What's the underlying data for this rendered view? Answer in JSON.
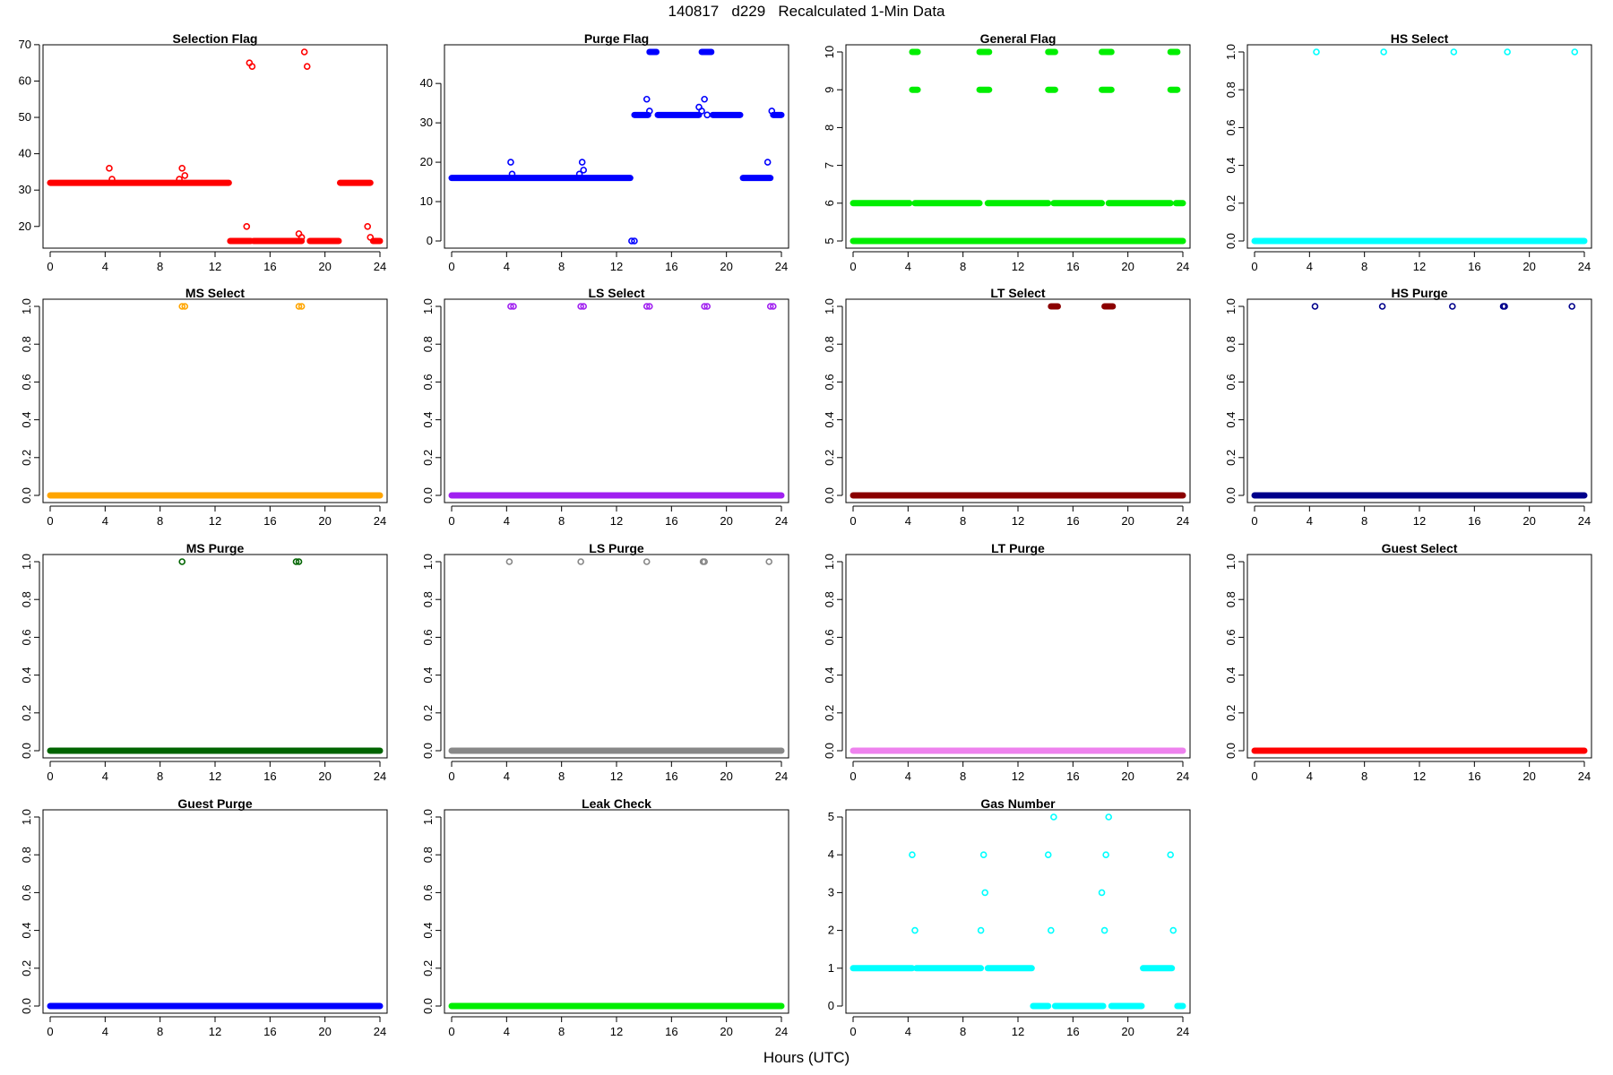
{
  "figure": {
    "title": "140817   d229   Recalculated 1-Min Data",
    "xlabel": "Hours (UTC)"
  },
  "chart_data": [
    {
      "type": "scatter",
      "title": "Selection Flag",
      "color": "#ff0000",
      "xlim": [
        0,
        24
      ],
      "xticks": [
        0,
        4,
        8,
        12,
        16,
        20,
        24
      ],
      "ylim": [
        16,
        68
      ],
      "yticks": [
        20,
        30,
        40,
        50,
        60,
        70
      ],
      "ytick_rotation": 0,
      "runs": [
        [
          0,
          13,
          32
        ],
        [
          13.1,
          14.6,
          16
        ],
        [
          14.8,
          18.3,
          16
        ],
        [
          18.9,
          21,
          16
        ],
        [
          21.1,
          23.3,
          32
        ],
        [
          23.5,
          24,
          16
        ]
      ],
      "points": [
        [
          4.3,
          36
        ],
        [
          4.5,
          33
        ],
        [
          9.4,
          33
        ],
        [
          9.6,
          36
        ],
        [
          9.8,
          34
        ],
        [
          14.3,
          20
        ],
        [
          14.5,
          65
        ],
        [
          14.7,
          64
        ],
        [
          18.1,
          18
        ],
        [
          18.3,
          17
        ],
        [
          18.5,
          68
        ],
        [
          18.7,
          64
        ],
        [
          23.1,
          20
        ],
        [
          23.3,
          17
        ]
      ]
    },
    {
      "type": "scatter",
      "title": "Purge Flag",
      "color": "#0000ff",
      "xlim": [
        0,
        24
      ],
      "xticks": [
        0,
        4,
        8,
        12,
        16,
        20,
        24
      ],
      "ylim": [
        0,
        48
      ],
      "yticks": [
        0,
        10,
        20,
        30,
        40
      ],
      "ytick_rotation": 0,
      "runs": [
        [
          0,
          13,
          16
        ],
        [
          13.3,
          14.3,
          32
        ],
        [
          14.4,
          14.9,
          48
        ],
        [
          15,
          18,
          32
        ],
        [
          18.2,
          18.9,
          48
        ],
        [
          19,
          21,
          32
        ],
        [
          21.2,
          23.2,
          16
        ],
        [
          23.4,
          24,
          32
        ]
      ],
      "points": [
        [
          4.3,
          20
        ],
        [
          4.4,
          17
        ],
        [
          9.3,
          17
        ],
        [
          9.5,
          20
        ],
        [
          9.6,
          18
        ],
        [
          13.1,
          0
        ],
        [
          13.3,
          0
        ],
        [
          14.2,
          36
        ],
        [
          14.4,
          33
        ],
        [
          18,
          34
        ],
        [
          18.2,
          33
        ],
        [
          18.4,
          36
        ],
        [
          18.6,
          32
        ],
        [
          23,
          20
        ],
        [
          23.3,
          33
        ]
      ]
    },
    {
      "type": "scatter",
      "title": "General Flag",
      "color": "#00ee00",
      "xlim": [
        0,
        24
      ],
      "xticks": [
        0,
        4,
        8,
        12,
        16,
        20,
        24
      ],
      "ylim": [
        5,
        10
      ],
      "yticks": [
        5,
        6,
        7,
        8,
        9,
        10
      ],
      "ytick_rotation": 90,
      "runs": [
        [
          0,
          24,
          5
        ],
        [
          0,
          4.1,
          6
        ],
        [
          4.5,
          9.2,
          6
        ],
        [
          9.8,
          14.2,
          6
        ],
        [
          14.6,
          18.1,
          6
        ],
        [
          18.6,
          23.1,
          6
        ],
        [
          23.5,
          24,
          6
        ],
        [
          4.3,
          4.7,
          9
        ],
        [
          4.3,
          4.7,
          10
        ],
        [
          9.2,
          9.9,
          9
        ],
        [
          9.2,
          9.9,
          10
        ],
        [
          14.2,
          14.7,
          9
        ],
        [
          14.2,
          14.7,
          10
        ],
        [
          18.1,
          18.8,
          9
        ],
        [
          18.1,
          18.8,
          10
        ],
        [
          23.1,
          23.6,
          9
        ],
        [
          23.1,
          23.6,
          10
        ]
      ],
      "points": []
    },
    {
      "type": "scatter",
      "title": "HS Select",
      "color": "#00ffff",
      "xlim": [
        0,
        24
      ],
      "xticks": [
        0,
        4,
        8,
        12,
        16,
        20,
        24
      ],
      "ylim": [
        0,
        1
      ],
      "yticks": [
        0.0,
        0.2,
        0.4,
        0.6,
        0.8,
        1.0
      ],
      "ytick_rotation": 90,
      "runs": [
        [
          0,
          24,
          0
        ]
      ],
      "points": [
        [
          4.5,
          1
        ],
        [
          9.4,
          1
        ],
        [
          14.5,
          1
        ],
        [
          18.4,
          1
        ],
        [
          23.3,
          1
        ]
      ]
    },
    {
      "type": "scatter",
      "title": "MS Select",
      "color": "#ffa500",
      "xlim": [
        0,
        24
      ],
      "xticks": [
        0,
        4,
        8,
        12,
        16,
        20,
        24
      ],
      "ylim": [
        0,
        1
      ],
      "yticks": [
        0.0,
        0.2,
        0.4,
        0.6,
        0.8,
        1.0
      ],
      "ytick_rotation": 90,
      "runs": [
        [
          0,
          24,
          0
        ]
      ],
      "points": [
        [
          9.6,
          1
        ],
        [
          9.8,
          1
        ],
        [
          18.1,
          1
        ],
        [
          18.3,
          1
        ]
      ]
    },
    {
      "type": "scatter",
      "title": "LS Select",
      "color": "#a020f0",
      "xlim": [
        0,
        24
      ],
      "xticks": [
        0,
        4,
        8,
        12,
        16,
        20,
        24
      ],
      "ylim": [
        0,
        1
      ],
      "yticks": [
        0.0,
        0.2,
        0.4,
        0.6,
        0.8,
        1.0
      ],
      "ytick_rotation": 90,
      "runs": [
        [
          0,
          24,
          0
        ]
      ],
      "points": [
        [
          4.3,
          1
        ],
        [
          4.5,
          1
        ],
        [
          9.4,
          1
        ],
        [
          9.6,
          1
        ],
        [
          14.2,
          1
        ],
        [
          14.4,
          1
        ],
        [
          18.4,
          1
        ],
        [
          18.6,
          1
        ],
        [
          23.2,
          1
        ],
        [
          23.4,
          1
        ]
      ]
    },
    {
      "type": "scatter",
      "title": "LT Select",
      "color": "#8b0000",
      "xlim": [
        0,
        24
      ],
      "xticks": [
        0,
        4,
        8,
        12,
        16,
        20,
        24
      ],
      "ylim": [
        0,
        1
      ],
      "yticks": [
        0.0,
        0.2,
        0.4,
        0.6,
        0.8,
        1.0
      ],
      "ytick_rotation": 90,
      "runs": [
        [
          0,
          24,
          0
        ],
        [
          14.4,
          14.9,
          1
        ],
        [
          18.3,
          18.9,
          1
        ]
      ],
      "points": []
    },
    {
      "type": "scatter",
      "title": "HS Purge",
      "color": "#00008b",
      "xlim": [
        0,
        24
      ],
      "xticks": [
        0,
        4,
        8,
        12,
        16,
        20,
        24
      ],
      "ylim": [
        0,
        1
      ],
      "yticks": [
        0.0,
        0.2,
        0.4,
        0.6,
        0.8,
        1.0
      ],
      "ytick_rotation": 90,
      "runs": [
        [
          0,
          24,
          0
        ]
      ],
      "points": [
        [
          4.4,
          1
        ],
        [
          9.3,
          1
        ],
        [
          14.4,
          1
        ],
        [
          18.1,
          1
        ],
        [
          18.2,
          1
        ],
        [
          23.1,
          1
        ]
      ]
    },
    {
      "type": "scatter",
      "title": "MS Purge",
      "color": "#006400",
      "xlim": [
        0,
        24
      ],
      "xticks": [
        0,
        4,
        8,
        12,
        16,
        20,
        24
      ],
      "ylim": [
        0,
        1
      ],
      "yticks": [
        0.0,
        0.2,
        0.4,
        0.6,
        0.8,
        1.0
      ],
      "ytick_rotation": 90,
      "runs": [
        [
          0,
          24,
          0
        ]
      ],
      "points": [
        [
          9.6,
          1
        ],
        [
          17.9,
          1
        ],
        [
          18.1,
          1
        ]
      ]
    },
    {
      "type": "scatter",
      "title": "LS Purge",
      "color": "#888888",
      "xlim": [
        0,
        24
      ],
      "xticks": [
        0,
        4,
        8,
        12,
        16,
        20,
        24
      ],
      "ylim": [
        0,
        1
      ],
      "yticks": [
        0.0,
        0.2,
        0.4,
        0.6,
        0.8,
        1.0
      ],
      "ytick_rotation": 90,
      "runs": [
        [
          0,
          24,
          0
        ]
      ],
      "points": [
        [
          4.2,
          1
        ],
        [
          9.4,
          1
        ],
        [
          14.2,
          1
        ],
        [
          18.3,
          1
        ],
        [
          18.4,
          1
        ],
        [
          23.1,
          1
        ]
      ]
    },
    {
      "type": "scatter",
      "title": "LT Purge",
      "color": "#ee82ee",
      "xlim": [
        0,
        24
      ],
      "xticks": [
        0,
        4,
        8,
        12,
        16,
        20,
        24
      ],
      "ylim": [
        0,
        1
      ],
      "yticks": [
        0.0,
        0.2,
        0.4,
        0.6,
        0.8,
        1.0
      ],
      "ytick_rotation": 90,
      "runs": [
        [
          0,
          24,
          0
        ]
      ],
      "points": []
    },
    {
      "type": "scatter",
      "title": "Guest Select",
      "color": "#ff0000",
      "xlim": [
        0,
        24
      ],
      "xticks": [
        0,
        4,
        8,
        12,
        16,
        20,
        24
      ],
      "ylim": [
        0,
        1
      ],
      "yticks": [
        0.0,
        0.2,
        0.4,
        0.6,
        0.8,
        1.0
      ],
      "ytick_rotation": 90,
      "runs": [
        [
          0,
          24,
          0
        ]
      ],
      "points": []
    },
    {
      "type": "scatter",
      "title": "Guest Purge",
      "color": "#0000ff",
      "xlim": [
        0,
        24
      ],
      "xticks": [
        0,
        4,
        8,
        12,
        16,
        20,
        24
      ],
      "ylim": [
        0,
        1
      ],
      "yticks": [
        0.0,
        0.2,
        0.4,
        0.6,
        0.8,
        1.0
      ],
      "ytick_rotation": 90,
      "runs": [
        [
          0,
          24,
          0
        ]
      ],
      "points": []
    },
    {
      "type": "scatter",
      "title": "Leak Check",
      "color": "#00ee00",
      "xlim": [
        0,
        24
      ],
      "xticks": [
        0,
        4,
        8,
        12,
        16,
        20,
        24
      ],
      "ylim": [
        0,
        1
      ],
      "yticks": [
        0.0,
        0.2,
        0.4,
        0.6,
        0.8,
        1.0
      ],
      "ytick_rotation": 90,
      "runs": [
        [
          0,
          24,
          0
        ]
      ],
      "points": []
    },
    {
      "type": "scatter",
      "title": "Gas Number",
      "color": "#00ffff",
      "xlim": [
        0,
        24
      ],
      "xticks": [
        0,
        4,
        8,
        12,
        16,
        20,
        24
      ],
      "ylim": [
        0,
        5
      ],
      "yticks": [
        0,
        1,
        2,
        3,
        4,
        5
      ],
      "ytick_rotation": 0,
      "runs": [
        [
          0,
          4.3,
          1
        ],
        [
          4.6,
          9.3,
          1
        ],
        [
          9.8,
          13,
          1
        ],
        [
          13.1,
          14.2,
          0
        ],
        [
          14.7,
          18.2,
          0
        ],
        [
          18.8,
          21,
          0
        ],
        [
          21.1,
          23.2,
          1
        ],
        [
          23.6,
          24,
          0
        ]
      ],
      "points": [
        [
          4.3,
          4
        ],
        [
          4.5,
          2
        ],
        [
          9.3,
          2
        ],
        [
          9.5,
          4
        ],
        [
          9.6,
          3
        ],
        [
          14.2,
          4
        ],
        [
          14.4,
          2
        ],
        [
          14.6,
          5
        ],
        [
          18.1,
          3
        ],
        [
          18.3,
          2
        ],
        [
          18.4,
          4
        ],
        [
          18.6,
          5
        ],
        [
          23.1,
          4
        ],
        [
          23.3,
          2
        ]
      ]
    }
  ]
}
